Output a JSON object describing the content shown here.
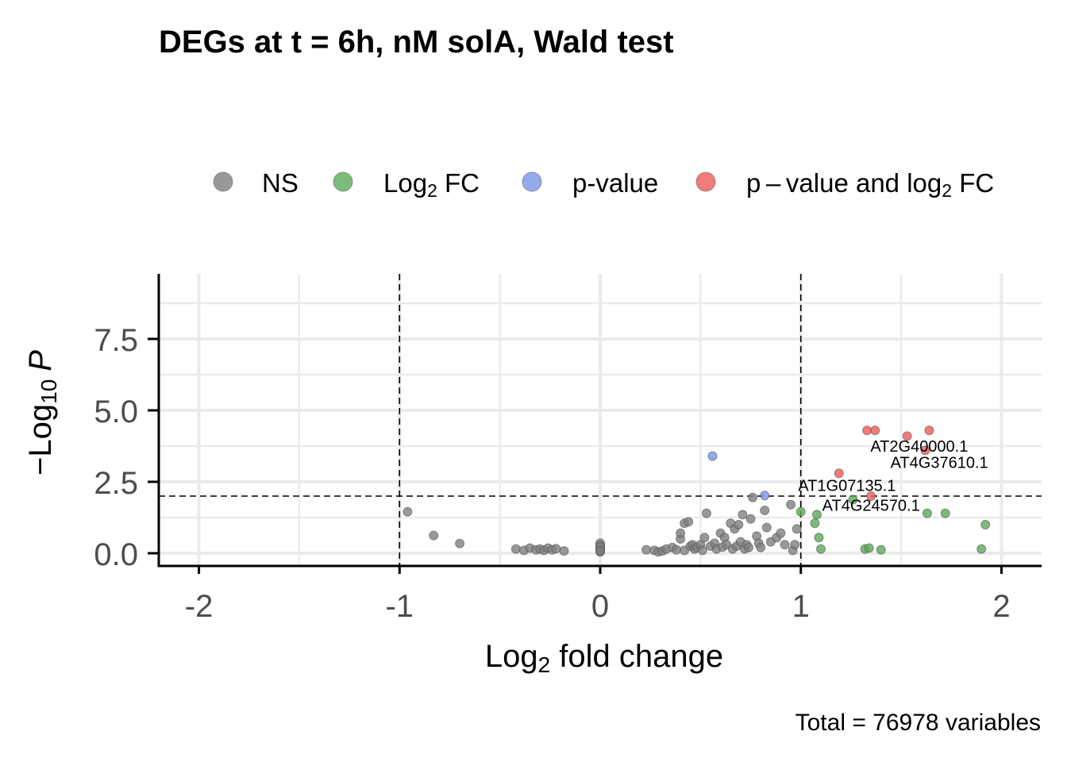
{
  "chart_data": {
    "type": "scatter",
    "title": "DEGs at t = 6h, nM solA, Wald test",
    "xlabel": {
      "prefix": "Log",
      "sub": "2",
      "suffix": " fold change"
    },
    "ylabel": {
      "prefix": "−Log",
      "sub": "10",
      "suffix": "P"
    },
    "caption": "Total = 76978 variables",
    "xlim": [
      -2.2,
      2.2
    ],
    "ylim": [
      0,
      9.5
    ],
    "x_ticks": [
      -2,
      -1,
      0,
      1,
      2
    ],
    "x_tick_labels": [
      "-2",
      "-1",
      "0",
      "1",
      "2"
    ],
    "y_ticks": [
      0,
      2.5,
      5,
      7.5
    ],
    "y_tick_labels": [
      "0.0",
      "2.5",
      "5.0",
      "7.5"
    ],
    "fc_cutoff": 1,
    "p_cutoff_log10": 2,
    "legend_position": "top",
    "legend": [
      {
        "key": "NS",
        "color": "#808080",
        "parts": [
          {
            "t": "NS"
          }
        ]
      },
      {
        "key": "FC",
        "color": "#5aab5a",
        "parts": [
          {
            "t": "Log"
          },
          {
            "t": "2",
            "sub": true
          },
          {
            "t": " FC"
          }
        ]
      },
      {
        "key": "P",
        "color": "#7b95e8",
        "parts": [
          {
            "t": "p-value"
          }
        ]
      },
      {
        "key": "FC_P",
        "color": "#f05a5a",
        "parts": [
          {
            "t": "p – value and log"
          },
          {
            "t": "2",
            "sub": true
          },
          {
            "t": " FC"
          }
        ]
      }
    ],
    "series": [
      {
        "key": "NS",
        "points": [
          [
            -0.96,
            1.45
          ],
          [
            -0.83,
            0.62
          ],
          [
            -0.7,
            0.34
          ],
          [
            -0.42,
            0.15
          ],
          [
            -0.38,
            0.1
          ],
          [
            -0.35,
            0.18
          ],
          [
            -0.32,
            0.12
          ],
          [
            -0.3,
            0.15
          ],
          [
            -0.28,
            0.1
          ],
          [
            -0.26,
            0.18
          ],
          [
            -0.24,
            0.12
          ],
          [
            -0.22,
            0.16
          ],
          [
            -0.18,
            0.08
          ],
          [
            0.0,
            0.05
          ],
          [
            0.0,
            0.1
          ],
          [
            0.0,
            0.15
          ],
          [
            0.0,
            0.2
          ],
          [
            0.0,
            0.25
          ],
          [
            0.0,
            0.3
          ],
          [
            0.0,
            0.35
          ],
          [
            0.0,
            0.12
          ],
          [
            0.0,
            0.22
          ],
          [
            0.0,
            0.08
          ],
          [
            0.23,
            0.12
          ],
          [
            0.27,
            0.1
          ],
          [
            0.29,
            0.05
          ],
          [
            0.31,
            0.08
          ],
          [
            0.33,
            0.15
          ],
          [
            0.36,
            0.2
          ],
          [
            0.38,
            0.12
          ],
          [
            0.4,
            0.5
          ],
          [
            0.4,
            0.7
          ],
          [
            0.42,
            0.1
          ],
          [
            0.42,
            1.05
          ],
          [
            0.44,
            1.1
          ],
          [
            0.45,
            0.25
          ],
          [
            0.46,
            0.3
          ],
          [
            0.47,
            0.15
          ],
          [
            0.48,
            0.2
          ],
          [
            0.5,
            0.3
          ],
          [
            0.51,
            0.1
          ],
          [
            0.52,
            0.55
          ],
          [
            0.53,
            1.4
          ],
          [
            0.55,
            0.25
          ],
          [
            0.57,
            0.35
          ],
          [
            0.58,
            0.15
          ],
          [
            0.6,
            0.7
          ],
          [
            0.61,
            0.22
          ],
          [
            0.62,
            0.55
          ],
          [
            0.63,
            0.3
          ],
          [
            0.65,
            1.05
          ],
          [
            0.66,
            0.15
          ],
          [
            0.67,
            0.85
          ],
          [
            0.68,
            0.25
          ],
          [
            0.69,
            1.0
          ],
          [
            0.7,
            0.4
          ],
          [
            0.71,
            1.35
          ],
          [
            0.72,
            0.15
          ],
          [
            0.73,
            0.3
          ],
          [
            0.74,
            0.2
          ],
          [
            0.75,
            1.2
          ],
          [
            0.76,
            1.95
          ],
          [
            0.78,
            0.6
          ],
          [
            0.79,
            0.35
          ],
          [
            0.8,
            0.2
          ],
          [
            0.82,
            1.5
          ],
          [
            0.83,
            0.9
          ],
          [
            0.85,
            0.4
          ],
          [
            0.88,
            0.55
          ],
          [
            0.9,
            0.7
          ],
          [
            0.92,
            0.3
          ],
          [
            0.95,
            1.7
          ],
          [
            0.96,
            0.1
          ],
          [
            0.97,
            0.3
          ],
          [
            0.98,
            0.85
          ]
        ]
      },
      {
        "key": "FC",
        "points": [
          [
            1.0,
            1.45
          ],
          [
            1.07,
            1.05
          ],
          [
            1.08,
            1.35
          ],
          [
            1.09,
            0.55
          ],
          [
            1.1,
            0.15
          ],
          [
            1.26,
            1.88
          ],
          [
            1.32,
            0.15
          ],
          [
            1.34,
            0.18
          ],
          [
            1.4,
            0.12
          ],
          [
            1.63,
            1.4
          ],
          [
            1.72,
            1.4
          ],
          [
            1.9,
            0.15
          ],
          [
            1.92,
            1.0
          ]
        ]
      },
      {
        "key": "P",
        "points": [
          [
            0.56,
            3.4
          ],
          [
            0.82,
            2.02
          ]
        ]
      },
      {
        "key": "FC_P",
        "points": [
          [
            1.19,
            2.8
          ],
          [
            1.33,
            4.3
          ],
          [
            1.37,
            4.3
          ],
          [
            1.35,
            2.0
          ],
          [
            1.53,
            4.1
          ],
          [
            1.62,
            3.6
          ],
          [
            1.64,
            4.3
          ]
        ]
      }
    ],
    "labels": [
      {
        "text": "AT2G40000.1",
        "x": 1.59,
        "y": 3.55
      },
      {
        "text": "AT4G37610.1",
        "x": 1.69,
        "y": 2.98
      },
      {
        "text": "AT1G07135.1",
        "x": 1.23,
        "y": 2.18
      },
      {
        "text": "AT4G24570.1",
        "x": 1.35,
        "y": 1.48
      }
    ]
  }
}
